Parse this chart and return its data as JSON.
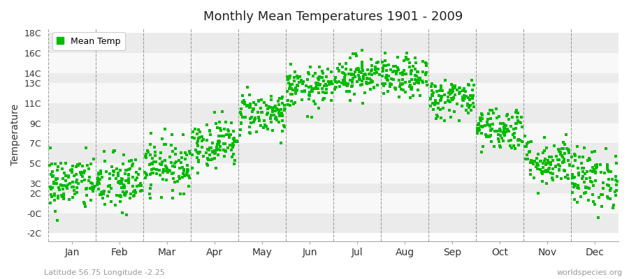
{
  "title": "Monthly Mean Temperatures 1901 - 2009",
  "ylabel": "Temperature",
  "xlabel_bottom_left": "Latitude 56.75 Longitude -2.25",
  "xlabel_bottom_right": "worldspecies.org",
  "legend_label": "Mean Temp",
  "dot_color": "#00bb00",
  "bg_color": "#ffffff",
  "band_colors": [
    "#ebebeb",
    "#f8f8f8"
  ],
  "ylim": [
    -2.8,
    18.5
  ],
  "ytick_vals": [
    -2,
    0,
    2,
    3,
    5,
    7,
    9,
    11,
    13,
    14,
    16,
    18
  ],
  "ytick_labels": [
    "-2C",
    "-0C",
    "2C",
    "3C",
    "5C",
    "7C",
    "9C",
    "11C",
    "13C",
    "14C",
    "16C",
    "18C"
  ],
  "months": [
    "Jan",
    "Feb",
    "Mar",
    "Apr",
    "May",
    "Jun",
    "Jul",
    "Aug",
    "Sep",
    "Oct",
    "Nov",
    "Dec"
  ],
  "month_params": {
    "Jan": {
      "mean": 3.0,
      "std": 1.4,
      "lo": -1.5,
      "hi": 6.5
    },
    "Feb": {
      "mean": 3.0,
      "std": 1.5,
      "lo": -1.8,
      "hi": 7.0
    },
    "Mar": {
      "mean": 4.8,
      "std": 1.3,
      "lo": 1.5,
      "hi": 8.5
    },
    "Apr": {
      "mean": 7.0,
      "std": 1.2,
      "lo": 4.0,
      "hi": 10.5
    },
    "May": {
      "mean": 10.0,
      "std": 1.1,
      "lo": 7.0,
      "hi": 13.5
    },
    "Jun": {
      "mean": 12.5,
      "std": 1.0,
      "lo": 9.5,
      "hi": 15.5
    },
    "Jul": {
      "mean": 13.8,
      "std": 1.0,
      "lo": 11.0,
      "hi": 16.5
    },
    "Aug": {
      "mean": 13.5,
      "std": 1.0,
      "lo": 10.5,
      "hi": 16.0
    },
    "Sep": {
      "mean": 11.5,
      "std": 1.0,
      "lo": 8.5,
      "hi": 14.5
    },
    "Oct": {
      "mean": 8.5,
      "std": 1.1,
      "lo": 5.5,
      "hi": 11.5
    },
    "Nov": {
      "mean": 5.2,
      "std": 1.2,
      "lo": 2.0,
      "hi": 8.5
    },
    "Dec": {
      "mean": 3.5,
      "std": 1.5,
      "lo": -1.0,
      "hi": 7.5
    }
  },
  "n_years": 109,
  "seed": 42
}
